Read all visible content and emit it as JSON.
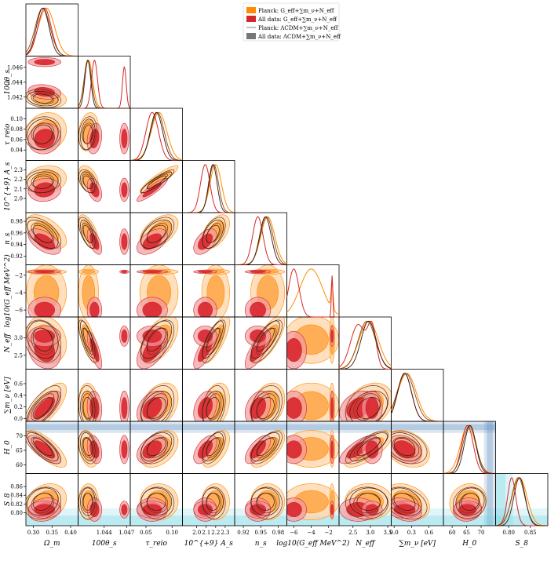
{
  "chart_data": {
    "type": "triangle-corner-plot",
    "title": "",
    "parameters": [
      {
        "key": "om",
        "label": "Ω_m",
        "range": [
          0.28,
          0.42
        ],
        "ticks": [
          0.3,
          0.35,
          0.4
        ],
        "tick_labels": [
          "0.30",
          "0.35",
          "0.40"
        ]
      },
      {
        "key": "theta",
        "label": "100θ_s",
        "range": [
          1.0405,
          1.0475
        ],
        "ticks": [
          1.042,
          1.044,
          1.046
        ],
        "tick_labels": [
          "1.042",
          "1.044",
          "1.046"
        ],
        "bottom_ticks": [
          1.044,
          1.047
        ],
        "bottom_tick_labels": [
          "1.044",
          "1.047"
        ]
      },
      {
        "key": "tau",
        "label": "τ_reio",
        "range": [
          0.02,
          0.12
        ],
        "ticks": [
          0.04,
          0.06,
          0.08,
          0.1
        ],
        "tick_labels": [
          "0.04",
          "0.06",
          "0.08",
          "0.10"
        ],
        "bottom_ticks": [
          0.05,
          0.1
        ],
        "bottom_tick_labels": [
          "0.05",
          "0.10"
        ]
      },
      {
        "key": "as",
        "label": "10^{+9} A_s",
        "range": [
          1.85,
          2.4
        ],
        "ticks": [
          2.0,
          2.1,
          2.2,
          2.3
        ],
        "tick_labels": [
          "2.0",
          "2.1",
          "2.2",
          "2.3"
        ]
      },
      {
        "key": "ns",
        "label": "n_s",
        "range": [
          0.905,
          0.995
        ],
        "ticks": [
          0.92,
          0.94,
          0.96,
          0.98
        ],
        "tick_labels": [
          "0.92",
          "0.94",
          "0.96",
          "0.98"
        ],
        "bottom_ticks": [
          0.92,
          0.95,
          0.98
        ],
        "bottom_tick_labels": [
          "0.92",
          "0.95",
          "0.98"
        ]
      },
      {
        "key": "geff",
        "label": "log10(G_eff MeV^2)",
        "range": [
          -6.8,
          -0.8
        ],
        "ticks": [
          -6,
          -4,
          -2
        ],
        "tick_labels": [
          "−6",
          "−4",
          "−2"
        ]
      },
      {
        "key": "neff",
        "label": "N_eff",
        "range": [
          2.1,
          3.6
        ],
        "ticks": [
          2.5,
          3.0
        ],
        "tick_labels": [
          "2.5",
          "3.0"
        ],
        "bottom_ticks": [
          2.5,
          3.0,
          3.5
        ],
        "bottom_tick_labels": [
          "2.5",
          "3.0",
          "3.5"
        ]
      },
      {
        "key": "mnu",
        "label": "∑m_ν [eV]",
        "range": [
          -0.05,
          0.85
        ],
        "ticks": [
          0.0,
          0.2,
          0.4,
          0.6
        ],
        "tick_labels": [
          "0.0",
          "0.2",
          "0.4",
          "0.6"
        ],
        "bottom_ticks": [
          0.0,
          0.3,
          0.6
        ],
        "bottom_tick_labels": [
          "0.0",
          "0.3",
          "0.6"
        ]
      },
      {
        "key": "h0",
        "label": "H_0",
        "range": [
          57,
          75
        ],
        "ticks": [
          60,
          65,
          70
        ],
        "tick_labels": [
          "60",
          "65",
          "70"
        ]
      },
      {
        "key": "s8",
        "label": "S_8",
        "range": [
          0.77,
          0.89
        ],
        "ticks": [
          0.8,
          0.82,
          0.84,
          0.86
        ],
        "tick_labels": [
          "0.80",
          "0.82",
          "0.84",
          "0.86"
        ],
        "bottom_ticks": [
          0.8,
          0.85
        ],
        "bottom_tick_labels": [
          "0.80",
          "0.85"
        ]
      }
    ],
    "left_axis_labels": [
      "100θ_s",
      "τ_reio",
      "10^{+9} A_s",
      "n_s",
      "log10(G_eff MeV^2)",
      "N_eff",
      "∑m_ν [eV]",
      "H_0",
      "S_8"
    ],
    "legend": {
      "placement": "top-right",
      "entries": [
        {
          "label": "Planck: G_eff+∑m_ν+N_eff",
          "color": "#ff8c00"
        },
        {
          "label": "All data: G_eff+∑m_ν+N_eff",
          "color": "#d62728"
        },
        {
          "label": "Planck: ΛCDM+∑m_ν+N_eff",
          "color": "#999999"
        },
        {
          "label": "All data: ΛCDM+∑m_ν+N_eff",
          "color": "#777777"
        }
      ]
    },
    "series": [
      {
        "name": "Planck: G_eff+∑m_ν+N_eff",
        "color": "#ff8c00",
        "fill68": "#ffa94d",
        "fill95": "#ffd4a8",
        "params": {
          "om": [
            0.335,
            0.022
          ],
          "theta": [
            1.0419,
            0.00055
          ],
          "tau": [
            0.075,
            0.015
          ],
          "as": [
            2.2,
            0.06
          ],
          "ns": [
            0.962,
            0.012
          ],
          "geff": [
            -4.0,
            1.3
          ],
          "neff": [
            2.95,
            0.28
          ],
          "mnu": [
            0.22,
            0.16
          ],
          "h0": [
            65.5,
            2.6
          ],
          "s8": [
            0.825,
            0.017
          ]
        },
        "mode2": {
          "geff": [
            -1.6,
            0.12
          ]
        },
        "mode2_weight": 0.25
      },
      {
        "name": "All data: G_eff+∑m_ν+N_eff",
        "color": "#d62728",
        "fill68": "#d9262e",
        "fill95": "#f19aa0",
        "params": {
          "om": [
            0.33,
            0.018
          ],
          "theta": [
            1.0427,
            0.0004
          ],
          "tau": [
            0.062,
            0.012
          ],
          "as": [
            2.09,
            0.05
          ],
          "ns": [
            0.945,
            0.009
          ],
          "geff": [
            -6.0,
            0.6
          ],
          "neff": [
            2.65,
            0.22
          ],
          "mnu": [
            0.18,
            0.12
          ],
          "h0": [
            65.3,
            2.0
          ],
          "s8": [
            0.807,
            0.011
          ]
        },
        "mode2": {
          "theta": [
            1.0467,
            0.00025
          ],
          "geff": [
            -1.6,
            0.08
          ],
          "neff": [
            3.05,
            0.12
          ],
          "s8": [
            0.807,
            0.008
          ]
        },
        "mode2_weight": 0.35
      },
      {
        "name": "Planck: ΛCDM+∑m_ν+N_eff",
        "color": "#999999",
        "params": {
          "om": [
            0.325,
            0.02
          ],
          "theta": [
            1.0418,
            0.0005
          ],
          "tau": [
            0.072,
            0.013
          ],
          "as": [
            2.18,
            0.05
          ],
          "ns": [
            0.96,
            0.011
          ],
          "neff": [
            2.9,
            0.25
          ],
          "mnu": [
            0.2,
            0.15
          ],
          "h0": [
            66.0,
            2.3
          ],
          "s8": [
            0.822,
            0.015
          ]
        }
      },
      {
        "name": "All data: ΛCDM+∑m_ν+N_eff",
        "color": "#777777",
        "params": {
          "om": [
            0.325,
            0.017
          ],
          "theta": [
            1.0418,
            0.0004
          ],
          "tau": [
            0.07,
            0.012
          ],
          "as": [
            2.17,
            0.045
          ],
          "ns": [
            0.958,
            0.01
          ],
          "neff": [
            2.95,
            0.22
          ],
          "mnu": [
            0.18,
            0.12
          ],
          "h0": [
            66.2,
            2.0
          ],
          "s8": [
            0.825,
            0.013
          ]
        }
      }
    ],
    "correlations": {
      "om|theta": -0.2,
      "om|tau": 0.1,
      "om|as": 0.1,
      "om|ns": -0.55,
      "om|neff": -0.2,
      "om|mnu": 0.7,
      "om|h0": -0.75,
      "om|s8": 0.2,
      "theta|tau": 0.2,
      "theta|as": -0.4,
      "theta|ns": -0.6,
      "theta|neff": -0.75,
      "theta|mnu": -0.1,
      "theta|h0": -0.3,
      "theta|s8": 0.0,
      "tau|as": 0.9,
      "tau|ns": 0.5,
      "tau|neff": 0.55,
      "tau|mnu": 0.35,
      "tau|h0": 0.4,
      "tau|s8": 0.0,
      "as|ns": 0.5,
      "as|neff": 0.75,
      "as|mnu": 0.3,
      "as|h0": 0.55,
      "as|s8": 0.0,
      "ns|neff": 0.75,
      "ns|mnu": 0.3,
      "ns|h0": 0.65,
      "ns|s8": 0.0,
      "neff|mnu": 0.3,
      "neff|h0": 0.75,
      "neff|s8": 0.0,
      "mnu|h0": -0.3,
      "mnu|s8": -0.3,
      "h0|s8": 0.1
    },
    "bands": [
      {
        "param": "h0",
        "kind": "horizontal-and-vertical",
        "center": 73.0,
        "sigma": 1.0,
        "color": "#5b8fbf"
      },
      {
        "param": "s8",
        "kind": "horizontal-and-vertical",
        "center": 0.776,
        "sigma": 0.017,
        "color": "#6ed2e0"
      }
    ]
  }
}
